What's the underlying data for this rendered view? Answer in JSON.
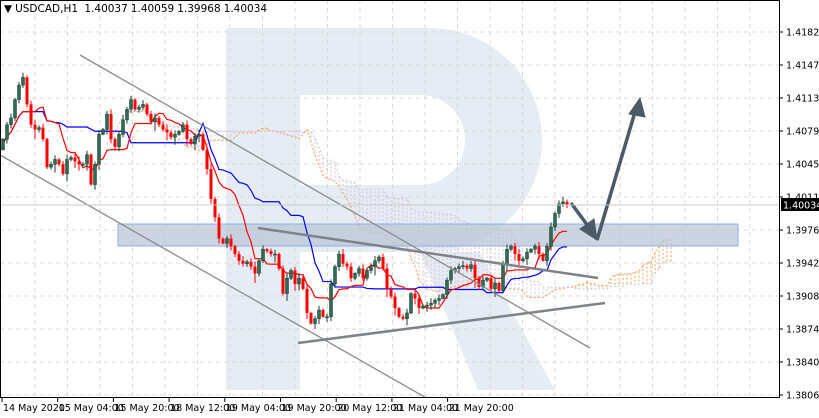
{
  "header": {
    "dropdown_icon": "triangle-down-icon",
    "symbol": "USDCAD,H1",
    "open": "1.40037",
    "high": "1.40059",
    "low": "1.39968",
    "close": "1.40034"
  },
  "chart_data": {
    "type": "candlestick",
    "title": "USDCAD,H1",
    "ylim": [
      1.3806,
      1.4182
    ],
    "grid": true,
    "y_ticks": [
      "1.41820",
      "1.41470",
      "1.41130",
      "1.40790",
      "1.40450",
      "1.40110",
      "1.39760",
      "1.39420",
      "1.39080",
      "1.38740",
      "1.38400",
      "1.38060"
    ],
    "x_ticks": [
      "14 May 2020",
      "15 May 04:00",
      "15 May 20:00",
      "18 May 12:00",
      "19 May 04:00",
      "19 May 20:00",
      "20 May 12:00",
      "21 May 04:00",
      "21 May 20:00"
    ],
    "current_price": "1.40034",
    "first_open": 1.406,
    "closes": [
      1.4071,
      1.4086,
      1.4093,
      1.4112,
      1.4127,
      1.4135,
      1.4107,
      1.4086,
      1.4081,
      1.4083,
      1.4071,
      1.4042,
      1.4045,
      1.405,
      1.4045,
      1.4035,
      1.405,
      1.4052,
      1.4048,
      1.4045,
      1.4045,
      1.4055,
      1.4024,
      1.4045,
      1.4076,
      1.4081,
      1.4097,
      1.4071,
      1.4063,
      1.4076,
      1.4091,
      1.4102,
      1.4112,
      1.4102,
      1.4104,
      1.4107,
      1.4097,
      1.4089,
      1.4093,
      1.4086,
      1.4081,
      1.4078,
      1.4073,
      1.4076,
      1.4079,
      1.4086,
      1.4071,
      1.4066,
      1.4074,
      1.4076,
      1.406,
      1.404,
      1.4009,
      1.399,
      1.3968,
      1.3963,
      1.3968,
      1.396,
      1.3952,
      1.3945,
      1.3942,
      1.3944,
      1.3939,
      1.3932,
      1.3945,
      1.3957,
      1.3955,
      1.3952,
      1.3952,
      1.3937,
      1.3911,
      1.3927,
      1.3935,
      1.3921,
      1.3927,
      1.3916,
      1.3891,
      1.388,
      1.3885,
      1.3894,
      1.3887,
      1.3887,
      1.3921,
      1.3939,
      1.3952,
      1.3942,
      1.3939,
      1.3927,
      1.3932,
      1.3937,
      1.3927,
      1.3935,
      1.3939,
      1.3945,
      1.3949,
      1.3937,
      1.3916,
      1.3908,
      1.3896,
      1.3887,
      1.3885,
      1.3891,
      1.3911,
      1.3906,
      1.3896,
      1.3898,
      1.3899,
      1.3901,
      1.3904,
      1.3906,
      1.391,
      1.3925,
      1.3935,
      1.3937,
      1.3939,
      1.394,
      1.3937,
      1.3941,
      1.3927,
      1.3918,
      1.3925,
      1.3927,
      1.3916,
      1.3922,
      1.3914,
      1.3942,
      1.3957,
      1.396,
      1.3952,
      1.3945,
      1.3947,
      1.3954,
      1.3957,
      1.396,
      1.3952,
      1.3945,
      1.396,
      1.398,
      1.3994,
      1.4004,
      1.4006,
      1.40034
    ],
    "indicators": {
      "tenkan_color": "#ff0000",
      "kijun_color": "#0000ff",
      "senkou_a_color": "#f4a460",
      "senkou_b_color": "#d8bfd8"
    },
    "colors": {
      "bull": "#2f6b52",
      "bear": "#ff0000",
      "trendline": "#8c8c8c",
      "arrow": "#4b5a66",
      "zone": "#b9c6d6"
    }
  }
}
